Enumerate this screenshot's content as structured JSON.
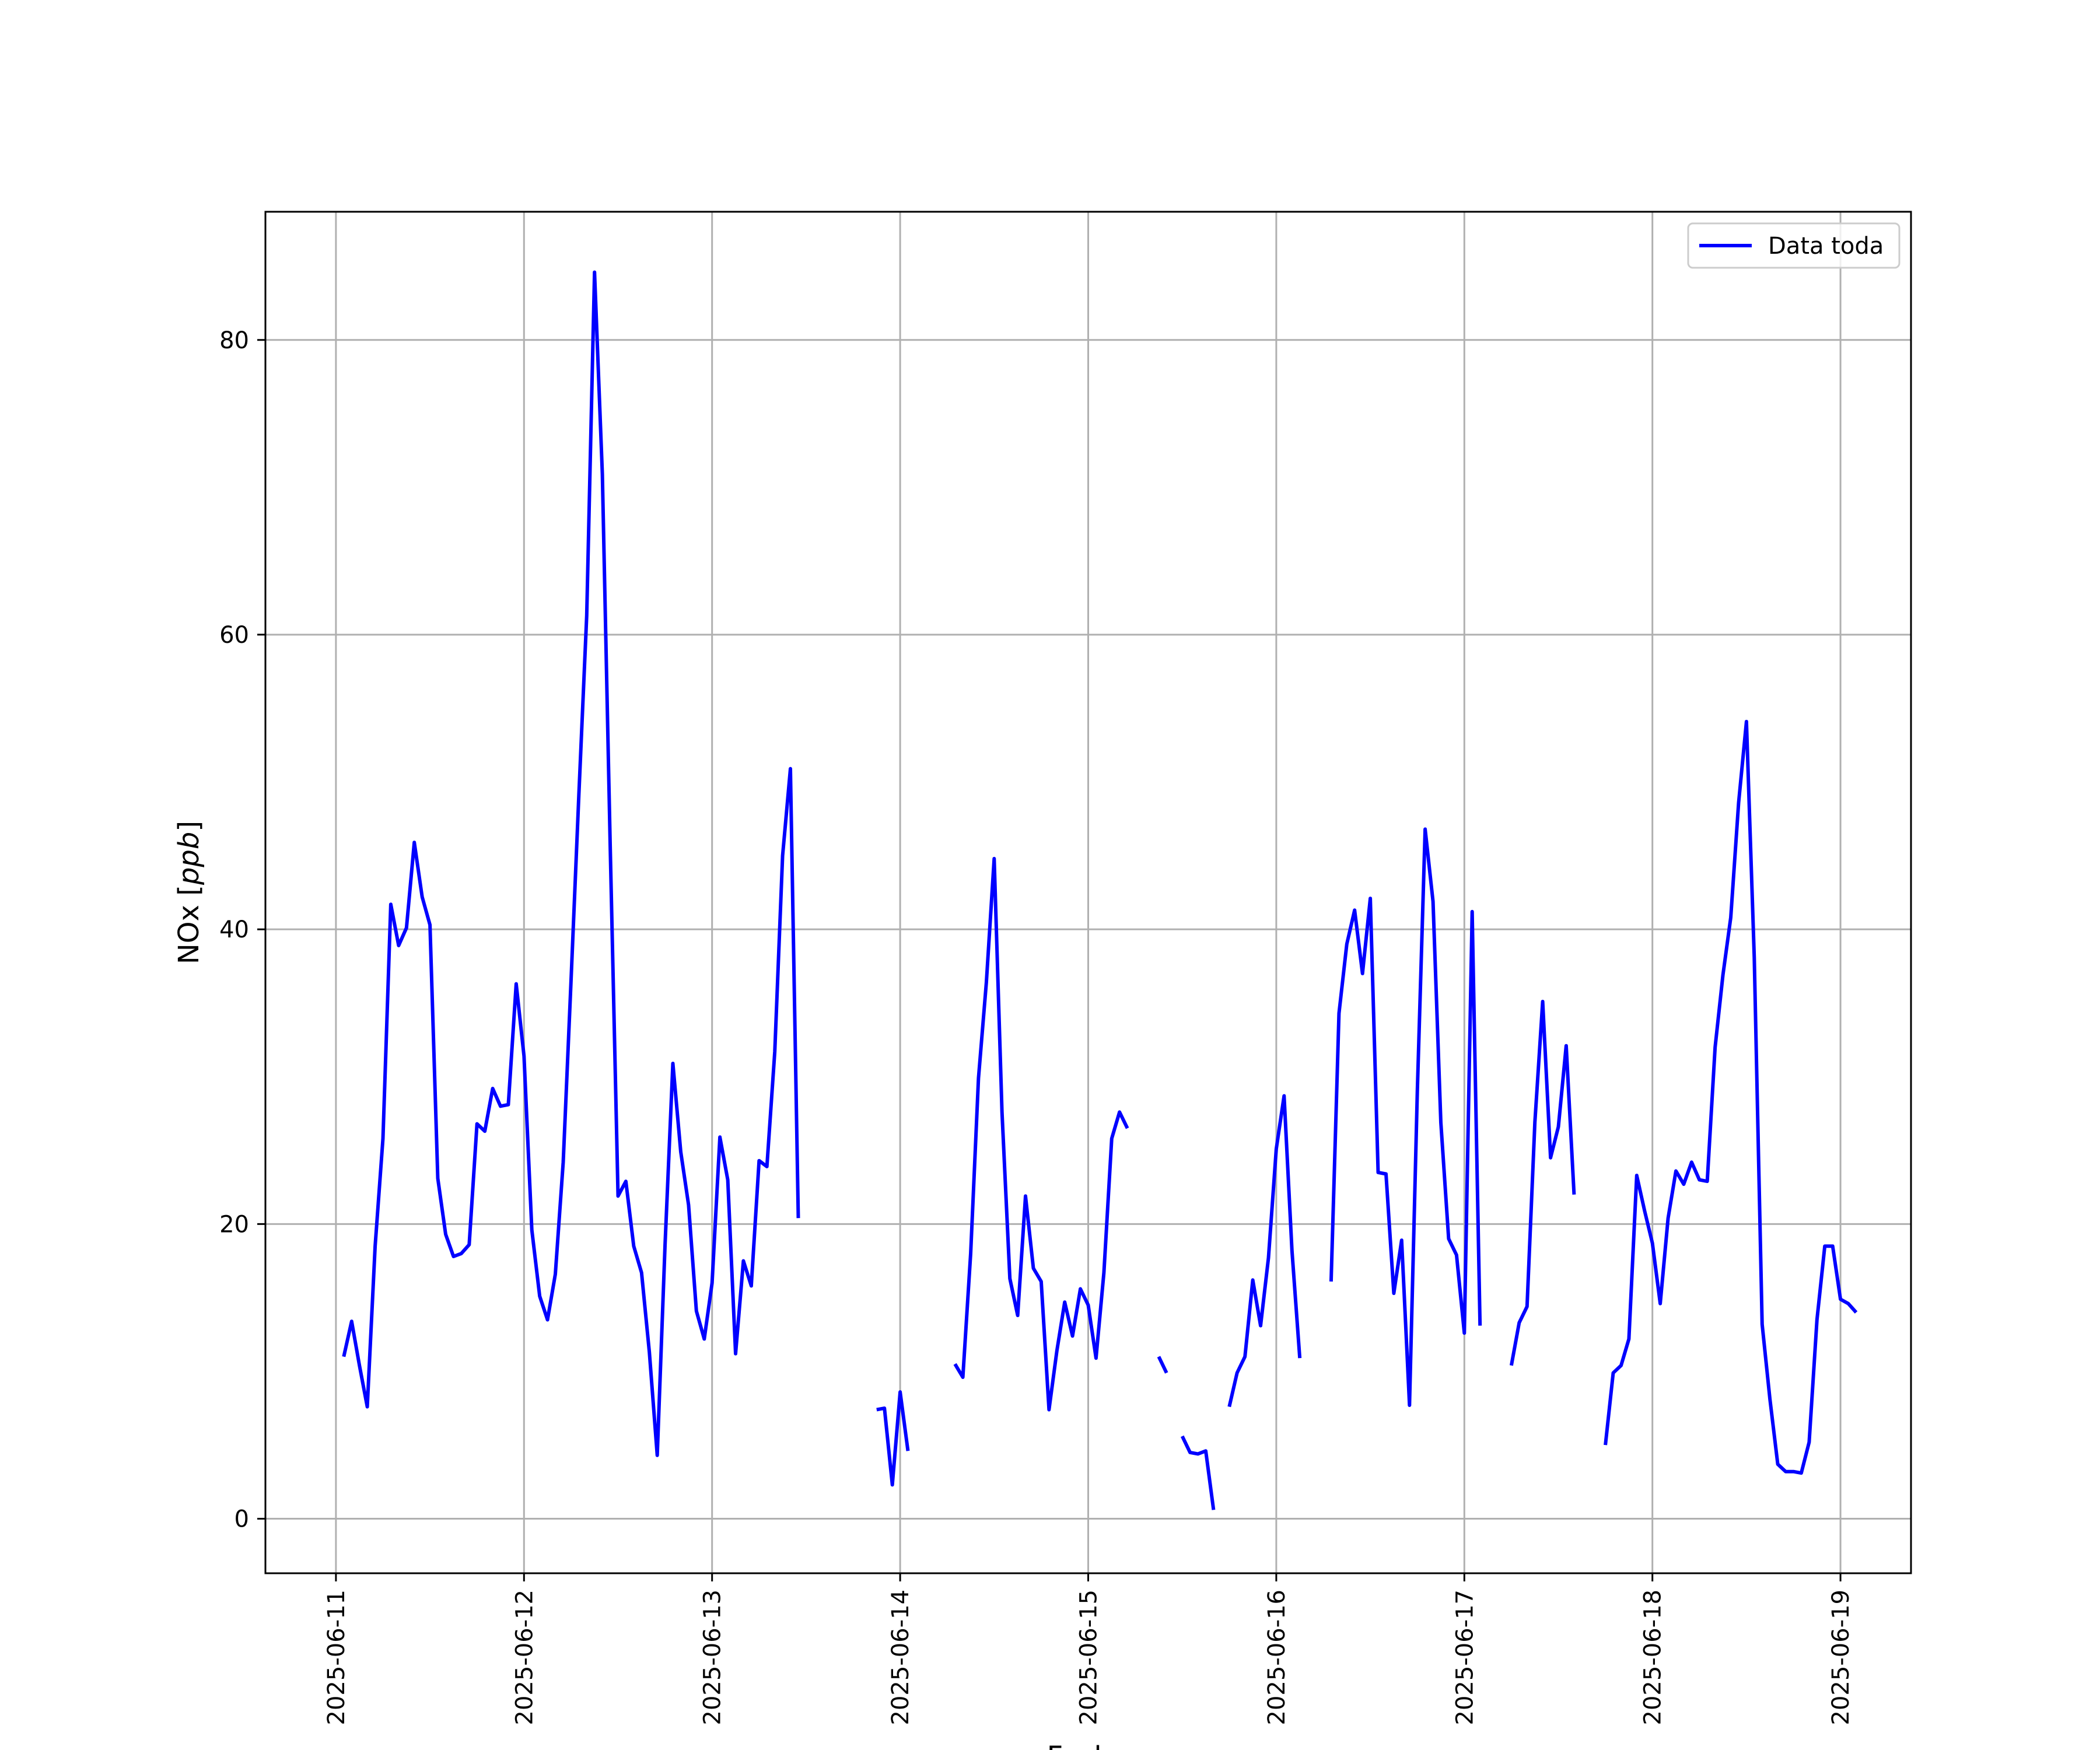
{
  "chart_data": {
    "type": "line",
    "xlabel": "Fecha",
    "ylabel": "NOx [ppb]",
    "ylabel_parts": {
      "name": "NOx [",
      "unit": "ppb",
      "close": "]"
    },
    "x_ticks": [
      "2025-06-11",
      "2025-06-12",
      "2025-06-13",
      "2025-06-14",
      "2025-06-15",
      "2025-06-16",
      "2025-06-17",
      "2025-06-18",
      "2025-06-19"
    ],
    "y_ticks": [
      0,
      20,
      40,
      60,
      80
    ],
    "xlim": [
      "2025-06-10T15:00",
      "2025-06-19T09:00"
    ],
    "ylim": [
      -3.7,
      88.7
    ],
    "grid": true,
    "legend_position": "top-right",
    "series": [
      {
        "name": "Data toda",
        "color": "#0000ff",
        "points": [
          [
            "2025-06-11T01:00",
            11
          ],
          [
            "2025-06-11T02:00",
            13.4
          ],
          [
            "2025-06-11T03:00",
            10.4
          ],
          [
            "2025-06-11T04:00",
            7.6
          ],
          [
            "2025-06-11T05:00",
            18.5
          ],
          [
            "2025-06-11T06:00",
            25.8
          ],
          [
            "2025-06-11T07:00",
            41.7
          ],
          [
            "2025-06-11T08:00",
            38.9
          ],
          [
            "2025-06-11T09:00",
            40.1
          ],
          [
            "2025-06-11T10:00",
            45.9
          ],
          [
            "2025-06-11T11:00",
            42.2
          ],
          [
            "2025-06-11T12:00",
            40.3
          ],
          [
            "2025-06-11T13:00",
            23.1
          ],
          [
            "2025-06-11T14:00",
            19.3
          ],
          [
            "2025-06-11T15:00",
            17.8
          ],
          [
            "2025-06-11T16:00",
            18
          ],
          [
            "2025-06-11T17:00",
            18.6
          ],
          [
            "2025-06-11T18:00",
            26.8
          ],
          [
            "2025-06-11T19:00",
            26.3
          ],
          [
            "2025-06-11T20:00",
            29.2
          ],
          [
            "2025-06-11T21:00",
            28
          ],
          [
            "2025-06-11T22:00",
            28.1
          ],
          [
            "2025-06-11T23:00",
            36.3
          ],
          [
            "2025-06-12T00:00",
            31.4
          ],
          [
            "2025-06-12T01:00",
            19.6
          ],
          [
            "2025-06-12T02:00",
            15.1
          ],
          [
            "2025-06-12T03:00",
            13.5
          ],
          [
            "2025-06-12T04:00",
            16.6
          ],
          [
            "2025-06-12T05:00",
            24.2
          ],
          [
            "2025-06-12T06:00",
            36.5
          ],
          [
            "2025-06-12T07:00",
            49.1
          ],
          [
            "2025-06-12T08:00",
            61.3
          ],
          [
            "2025-06-12T09:00",
            84.6
          ],
          [
            "2025-06-12T10:00",
            70.9
          ],
          [
            "2025-06-12T11:00",
            45.6
          ],
          [
            "2025-06-12T12:00",
            21.9
          ],
          [
            "2025-06-12T13:00",
            22.9
          ],
          [
            "2025-06-12T14:00",
            18.5
          ],
          [
            "2025-06-12T15:00",
            16.7
          ],
          [
            "2025-06-12T16:00",
            11.3
          ],
          [
            "2025-06-12T17:00",
            4.3
          ],
          [
            "2025-06-12T18:00",
            18.6
          ],
          [
            "2025-06-12T19:00",
            30.9
          ],
          [
            "2025-06-12T20:00",
            24.9
          ],
          [
            "2025-06-12T21:00",
            21.3
          ],
          [
            "2025-06-12T22:00",
            14.1
          ],
          [
            "2025-06-12T23:00",
            12.2
          ],
          [
            "2025-06-13T00:00",
            16
          ],
          [
            "2025-06-13T01:00",
            25.9
          ],
          [
            "2025-06-13T02:00",
            23
          ],
          [
            "2025-06-13T03:00",
            11.2
          ],
          [
            "2025-06-13T04:00",
            17.5
          ],
          [
            "2025-06-13T05:00",
            15.8
          ],
          [
            "2025-06-13T06:00",
            24.3
          ],
          [
            "2025-06-13T07:00",
            23.9
          ],
          [
            "2025-06-13T08:00",
            31.7
          ],
          [
            "2025-06-13T09:00",
            45
          ],
          [
            "2025-06-13T10:00",
            50.9
          ],
          [
            "2025-06-13T11:00",
            20.4
          ],
          null,
          [
            "2025-06-13T21:00",
            7.4
          ],
          [
            "2025-06-13T22:00",
            7.5
          ],
          [
            "2025-06-13T23:00",
            2.3
          ],
          [
            "2025-06-14T00:00",
            8.6
          ],
          [
            "2025-06-14T01:00",
            4.6
          ],
          null,
          [
            "2025-06-14T07:00",
            10.5
          ],
          [
            "2025-06-14T08:00",
            9.6
          ],
          [
            "2025-06-14T09:00",
            18
          ],
          [
            "2025-06-14T10:00",
            29.9
          ],
          [
            "2025-06-14T11:00",
            36.4
          ],
          [
            "2025-06-14T12:00",
            44.8
          ],
          [
            "2025-06-14T13:00",
            27.6
          ],
          [
            "2025-06-14T14:00",
            16.3
          ],
          [
            "2025-06-14T15:00",
            13.8
          ],
          [
            "2025-06-14T16:00",
            21.9
          ],
          [
            "2025-06-14T17:00",
            17
          ],
          [
            "2025-06-14T18:00",
            16.1
          ],
          [
            "2025-06-14T19:00",
            7.4
          ],
          [
            "2025-06-14T20:00",
            11.4
          ],
          [
            "2025-06-14T21:00",
            14.7
          ],
          [
            "2025-06-14T22:00",
            12.4
          ],
          [
            "2025-06-14T23:00",
            15.6
          ],
          [
            "2025-06-15T00:00",
            14.5
          ],
          [
            "2025-06-15T01:00",
            10.9
          ],
          [
            "2025-06-15T02:00",
            16.7
          ],
          [
            "2025-06-15T03:00",
            25.8
          ],
          [
            "2025-06-15T04:00",
            27.6
          ],
          [
            "2025-06-15T05:00",
            26.5
          ],
          null,
          [
            "2025-06-15T09:00",
            11
          ],
          [
            "2025-06-15T10:00",
            9.9
          ],
          null,
          [
            "2025-06-15T12:00",
            5.6
          ],
          [
            "2025-06-15T13:00",
            4.5
          ],
          [
            "2025-06-15T14:00",
            4.4
          ],
          [
            "2025-06-15T15:00",
            4.6
          ],
          [
            "2025-06-15T16:00",
            0.6
          ],
          null,
          [
            "2025-06-15T18:00",
            7.6
          ],
          [
            "2025-06-15T19:00",
            9.9
          ],
          [
            "2025-06-15T20:00",
            11
          ],
          [
            "2025-06-15T21:00",
            16.2
          ],
          [
            "2025-06-15T22:00",
            13.1
          ],
          [
            "2025-06-15T23:00",
            17.7
          ],
          [
            "2025-06-16T00:00",
            25.1
          ],
          [
            "2025-06-16T01:00",
            28.7
          ],
          [
            "2025-06-16T02:00",
            18.2
          ],
          [
            "2025-06-16T03:00",
            10.9
          ],
          null,
          [
            "2025-06-16T07:00",
            16.1
          ],
          [
            "2025-06-16T08:00",
            34.3
          ],
          [
            "2025-06-16T09:00",
            39
          ],
          [
            "2025-06-16T10:00",
            41.3
          ],
          [
            "2025-06-16T11:00",
            37
          ],
          [
            "2025-06-16T12:00",
            42.1
          ],
          [
            "2025-06-16T13:00",
            23.5
          ],
          [
            "2025-06-16T14:00",
            23.4
          ],
          [
            "2025-06-16T15:00",
            15.3
          ],
          [
            "2025-06-16T16:00",
            18.9
          ],
          [
            "2025-06-16T17:00",
            7.7
          ],
          [
            "2025-06-16T18:00",
            29
          ],
          [
            "2025-06-16T19:00",
            46.8
          ],
          [
            "2025-06-16T20:00",
            41.9
          ],
          [
            "2025-06-16T21:00",
            26.9
          ],
          [
            "2025-06-16T22:00",
            19
          ],
          [
            "2025-06-16T23:00",
            17.9
          ],
          [
            "2025-06-17T00:00",
            12.6
          ],
          [
            "2025-06-17T01:00",
            41.2
          ],
          [
            "2025-06-17T02:00",
            13.1
          ],
          null,
          [
            "2025-06-17T06:00",
            10.4
          ],
          [
            "2025-06-17T07:00",
            13.3
          ],
          [
            "2025-06-17T08:00",
            14.4
          ],
          [
            "2025-06-17T09:00",
            26.9
          ],
          [
            "2025-06-17T10:00",
            35.1
          ],
          [
            "2025-06-17T11:00",
            24.5
          ],
          [
            "2025-06-17T12:00",
            26.6
          ],
          [
            "2025-06-17T13:00",
            32.1
          ],
          [
            "2025-06-17T14:00",
            22
          ],
          null,
          [
            "2025-06-17T18:00",
            5
          ],
          [
            "2025-06-17T19:00",
            9.9
          ],
          [
            "2025-06-17T20:00",
            10.4
          ],
          [
            "2025-06-17T21:00",
            12.2
          ],
          [
            "2025-06-17T22:00",
            23.3
          ],
          [
            "2025-06-17T23:00",
            20.9
          ],
          [
            "2025-06-18T00:00",
            18.7
          ],
          [
            "2025-06-18T01:00",
            14.6
          ],
          [
            "2025-06-18T02:00",
            20.4
          ],
          [
            "2025-06-18T03:00",
            23.6
          ],
          [
            "2025-06-18T04:00",
            22.7
          ],
          [
            "2025-06-18T05:00",
            24.2
          ],
          [
            "2025-06-18T06:00",
            23
          ],
          [
            "2025-06-18T07:00",
            22.9
          ],
          [
            "2025-06-18T08:00",
            32
          ],
          [
            "2025-06-18T09:00",
            36.9
          ],
          [
            "2025-06-18T10:00",
            40.8
          ],
          [
            "2025-06-18T11:00",
            48.6
          ],
          [
            "2025-06-18T12:00",
            54.1
          ],
          [
            "2025-06-18T13:00",
            38.1
          ],
          [
            "2025-06-18T14:00",
            13.2
          ],
          [
            "2025-06-18T15:00",
            8.1
          ],
          [
            "2025-06-18T16:00",
            3.7
          ],
          [
            "2025-06-18T17:00",
            3.2
          ],
          [
            "2025-06-18T18:00",
            3.2
          ],
          [
            "2025-06-18T19:00",
            3.1
          ],
          [
            "2025-06-18T20:00",
            5.2
          ],
          [
            "2025-06-18T21:00",
            13.5
          ],
          [
            "2025-06-18T22:00",
            18.5
          ],
          [
            "2025-06-18T23:00",
            18.5
          ],
          [
            "2025-06-19T00:00",
            14.9
          ],
          [
            "2025-06-19T01:00",
            14.6
          ],
          [
            "2025-06-19T02:00",
            14
          ]
        ]
      }
    ]
  }
}
